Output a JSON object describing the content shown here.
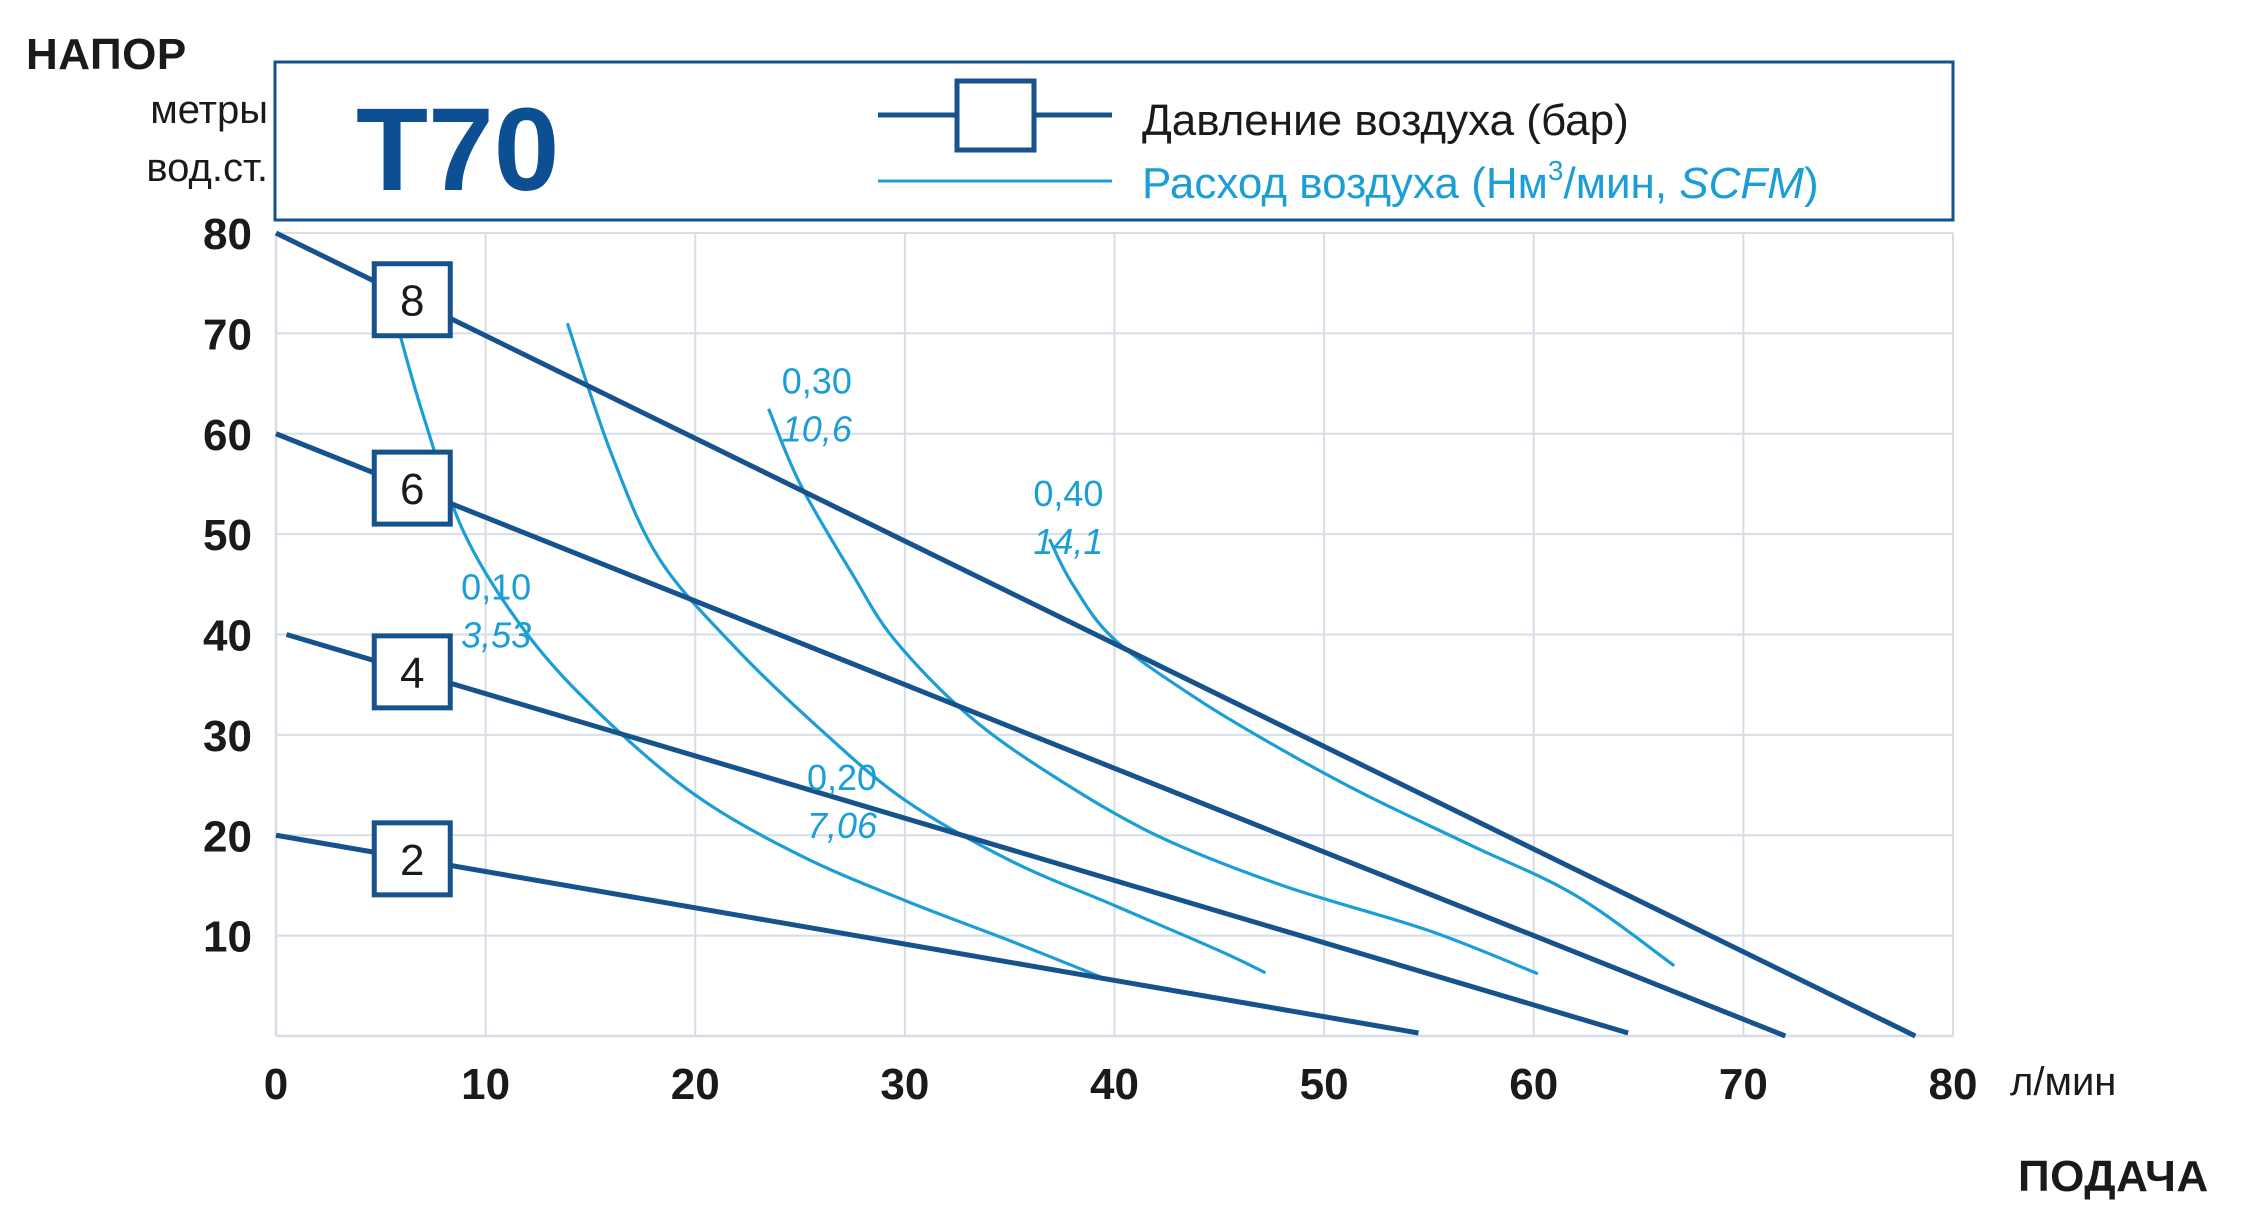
{
  "axis_heading_y": "НАПОР",
  "axis_unit_y_line1": "метры",
  "axis_unit_y_line2": "вод.ст.",
  "axis_unit_x": "л/мин",
  "axis_heading_x": "ПОДАЧА",
  "colors": {
    "pressure_line": "#16528c",
    "air_flow_line": "#1b9ed6",
    "title": "#0c4f93",
    "grid": "#d6dde6",
    "frame": "#16528c"
  },
  "chart_data": {
    "type": "line",
    "title": "T70",
    "xlabel": "ПОДАЧА",
    "ylabel": "НАПОР",
    "xlim": [
      0,
      80
    ],
    "ylim": [
      0,
      80
    ],
    "x_ticks": [
      "0",
      "10",
      "20",
      "30",
      "40",
      "50",
      "60",
      "70",
      "80"
    ],
    "y_ticks": [
      "10",
      "20",
      "30",
      "40",
      "50",
      "60",
      "70",
      "80"
    ],
    "grid": true,
    "legend": {
      "placement": "top",
      "items": [
        {
          "label": "Давление воздуха (бар)",
          "style": "pressure"
        },
        {
          "label_parts": [
            "Расход воздуха (Нм",
            "3",
            "/мин, ",
            "SCFM",
            ")"
          ],
          "style": "air_flow"
        }
      ]
    },
    "pressure_series": [
      {
        "name": "2",
        "points": [
          [
            0,
            20
          ],
          [
            54.5,
            0.3
          ]
        ]
      },
      {
        "name": "4",
        "points": [
          [
            0.5,
            40
          ],
          [
            64.5,
            0.3
          ]
        ]
      },
      {
        "name": "6",
        "points": [
          [
            0,
            60
          ],
          [
            72,
            0
          ]
        ]
      },
      {
        "name": "8",
        "points": [
          [
            0,
            80
          ],
          [
            78.2,
            0
          ]
        ]
      }
    ],
    "air_flow_series": [
      {
        "label": [
          "0,10",
          "3,53"
        ],
        "points": [
          [
            5.7,
            71.5
          ],
          [
            7.0,
            62
          ],
          [
            9.0,
            50
          ],
          [
            12.0,
            40
          ],
          [
            15.5,
            32
          ],
          [
            20.0,
            24
          ],
          [
            25.0,
            18
          ],
          [
            30.0,
            13.5
          ],
          [
            35.0,
            9.5
          ],
          [
            39.8,
            5.5
          ]
        ]
      },
      {
        "label": [
          "0,20",
          "7,06"
        ],
        "points": [
          [
            13.9,
            71
          ],
          [
            16.0,
            58
          ],
          [
            18.3,
            47.5
          ],
          [
            22.0,
            38.5
          ],
          [
            26.0,
            30.5
          ],
          [
            30.0,
            23.5
          ],
          [
            35.0,
            17.5
          ],
          [
            40.0,
            13
          ],
          [
            45.0,
            8.5
          ],
          [
            47.2,
            6.3
          ]
        ]
      },
      {
        "label": [
          "0,30",
          "10,6"
        ],
        "points": [
          [
            23.5,
            62.5
          ],
          [
            25.0,
            55
          ],
          [
            27.5,
            46
          ],
          [
            29.5,
            39.5
          ],
          [
            33.0,
            32
          ],
          [
            37.0,
            26
          ],
          [
            42.0,
            20
          ],
          [
            48.0,
            15
          ],
          [
            55.0,
            10.5
          ],
          [
            60.2,
            6.2
          ]
        ]
      },
      {
        "label": [
          "0,40",
          "14,1"
        ],
        "points": [
          [
            36.9,
            49.5
          ],
          [
            38.0,
            45
          ],
          [
            40.0,
            39.5
          ],
          [
            44.0,
            33.5
          ],
          [
            48.0,
            28.5
          ],
          [
            52.0,
            24
          ],
          [
            57.0,
            19
          ],
          [
            62.0,
            14
          ],
          [
            66.7,
            7.0
          ]
        ]
      }
    ]
  }
}
